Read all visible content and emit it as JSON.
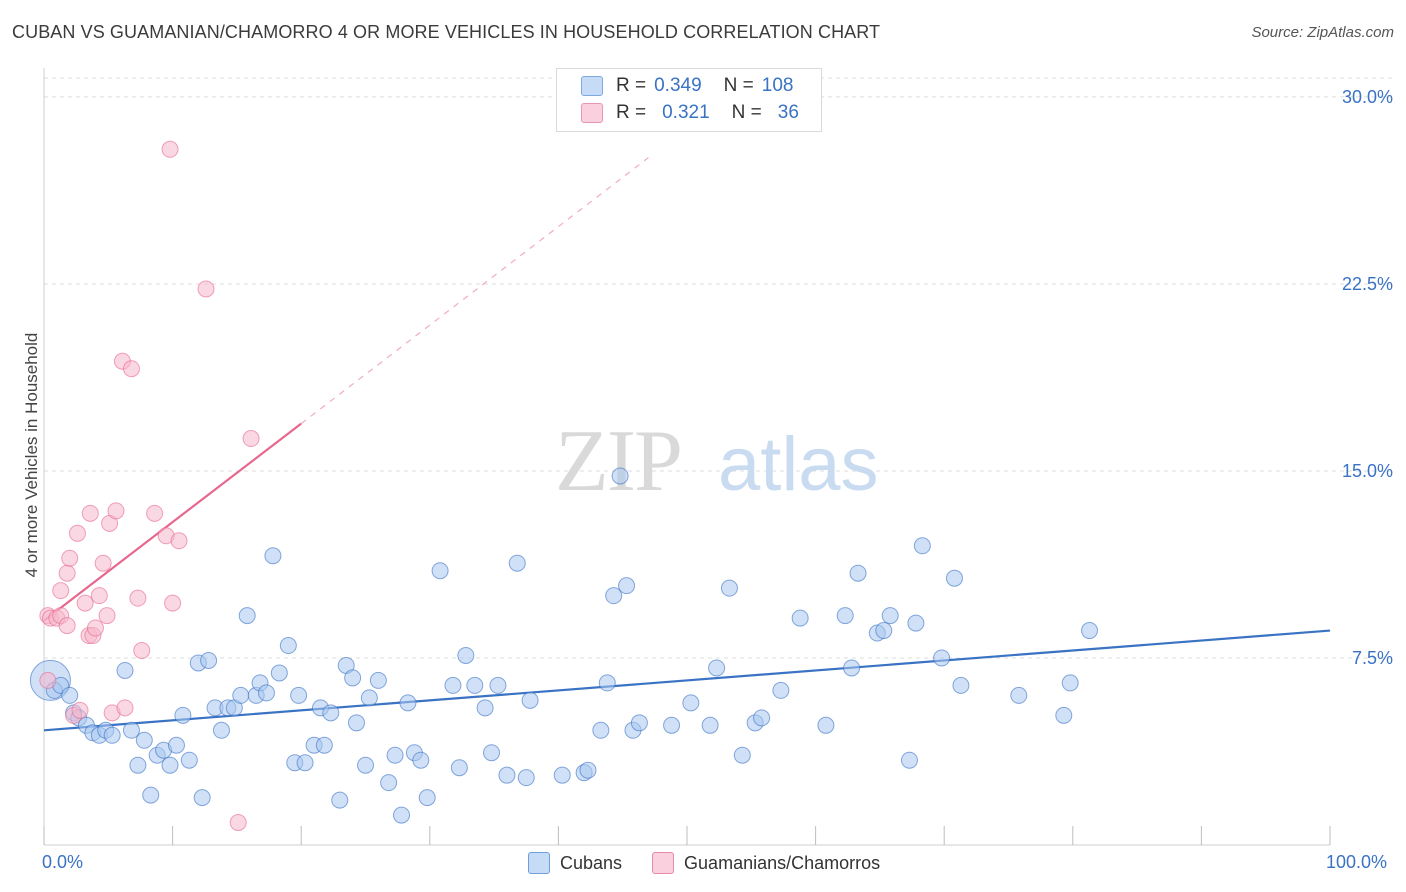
{
  "header": {
    "title": "CUBAN VS GUAMANIAN/CHAMORRO 4 OR MORE VEHICLES IN HOUSEHOLD CORRELATION CHART",
    "source": "Source: ZipAtlas.com"
  },
  "watermark": {
    "zip": "ZIP",
    "atlas": "atlas"
  },
  "stats_legend": [
    {
      "r_label": "R =",
      "r_value": "0.349",
      "n_label": "N =",
      "n_value": "108",
      "color": "#a9c8f0"
    },
    {
      "r_label": "R =",
      "r_value": "0.321",
      "n_label": "N =",
      "n_value": "36",
      "color": "#f6b8cc"
    }
  ],
  "chart_data": {
    "type": "scatter",
    "title": "CUBAN VS GUAMANIAN/CHAMORRO 4 OR MORE VEHICLES IN HOUSEHOLD CORRELATION CHART",
    "ylabel": "4 or more Vehicles in Household",
    "xlabel": "",
    "xlim": [
      0,
      100
    ],
    "ylim": [
      0,
      31
    ],
    "x_tick_labels": [
      "0.0%",
      "100.0%"
    ],
    "y_ticks": [
      7.5,
      15.0,
      22.5,
      30.0
    ],
    "y_tick_labels": [
      "7.5%",
      "15.0%",
      "22.5%",
      "30.0%"
    ],
    "grid": true,
    "legend_position": "bottom-center",
    "series": [
      {
        "name": "Cubans",
        "color": "#3a72c4",
        "fill": "#a9c8f0",
        "trend": {
          "x0": 0,
          "y0": 4.6,
          "x1": 100,
          "y1": 8.6,
          "dashed_to": 100
        },
        "points": [
          [
            0.5,
            6.6
          ],
          [
            0.8,
            6.2
          ],
          [
            1.3,
            6.4
          ],
          [
            2.0,
            6.0
          ],
          [
            2.3,
            5.3
          ],
          [
            2.7,
            5.1
          ],
          [
            3.3,
            4.8
          ],
          [
            3.8,
            4.5
          ],
          [
            4.3,
            4.4
          ],
          [
            4.8,
            4.6
          ],
          [
            5.3,
            4.4
          ],
          [
            6.3,
            7.0
          ],
          [
            6.8,
            4.6
          ],
          [
            7.3,
            3.2
          ],
          [
            7.8,
            4.2
          ],
          [
            8.3,
            2.0
          ],
          [
            8.8,
            3.6
          ],
          [
            9.3,
            3.8
          ],
          [
            9.8,
            3.2
          ],
          [
            10.3,
            4.0
          ],
          [
            10.8,
            5.2
          ],
          [
            11.3,
            3.4
          ],
          [
            12.0,
            7.3
          ],
          [
            12.3,
            1.9
          ],
          [
            12.8,
            7.4
          ],
          [
            13.3,
            5.5
          ],
          [
            13.8,
            4.6
          ],
          [
            14.3,
            5.5
          ],
          [
            14.8,
            5.5
          ],
          [
            15.3,
            6.0
          ],
          [
            15.8,
            9.2
          ],
          [
            16.5,
            6.0
          ],
          [
            16.8,
            6.5
          ],
          [
            17.3,
            6.1
          ],
          [
            17.8,
            11.6
          ],
          [
            18.3,
            6.9
          ],
          [
            19.0,
            8.0
          ],
          [
            19.5,
            3.3
          ],
          [
            19.8,
            6.0
          ],
          [
            20.3,
            3.3
          ],
          [
            21.0,
            4.0
          ],
          [
            21.5,
            5.5
          ],
          [
            21.8,
            4.0
          ],
          [
            22.3,
            5.3
          ],
          [
            23.0,
            1.8
          ],
          [
            23.5,
            7.2
          ],
          [
            24.0,
            6.7
          ],
          [
            24.3,
            4.9
          ],
          [
            25.0,
            3.2
          ],
          [
            25.3,
            5.9
          ],
          [
            26.0,
            6.6
          ],
          [
            26.8,
            2.5
          ],
          [
            27.3,
            3.6
          ],
          [
            27.8,
            1.2
          ],
          [
            28.3,
            5.7
          ],
          [
            28.8,
            3.7
          ],
          [
            29.3,
            3.4
          ],
          [
            29.8,
            1.9
          ],
          [
            30.8,
            11.0
          ],
          [
            31.8,
            6.4
          ],
          [
            32.3,
            3.1
          ],
          [
            32.8,
            7.6
          ],
          [
            33.5,
            6.4
          ],
          [
            34.3,
            5.5
          ],
          [
            34.8,
            3.7
          ],
          [
            35.3,
            6.4
          ],
          [
            36.0,
            2.8
          ],
          [
            36.8,
            11.3
          ],
          [
            37.5,
            2.7
          ],
          [
            37.8,
            5.8
          ],
          [
            40.3,
            2.8
          ],
          [
            42.0,
            2.9
          ],
          [
            42.3,
            3.0
          ],
          [
            43.3,
            4.6
          ],
          [
            43.8,
            6.5
          ],
          [
            44.3,
            10.0
          ],
          [
            44.8,
            14.8
          ],
          [
            45.3,
            10.4
          ],
          [
            45.8,
            4.6
          ],
          [
            46.3,
            4.9
          ],
          [
            48.8,
            4.8
          ],
          [
            50.3,
            5.7
          ],
          [
            51.8,
            4.8
          ],
          [
            52.3,
            7.1
          ],
          [
            53.3,
            10.3
          ],
          [
            54.3,
            3.6
          ],
          [
            55.3,
            4.9
          ],
          [
            55.8,
            5.1
          ],
          [
            57.3,
            6.2
          ],
          [
            58.8,
            9.1
          ],
          [
            60.8,
            4.8
          ],
          [
            62.3,
            9.2
          ],
          [
            62.8,
            7.1
          ],
          [
            63.3,
            10.9
          ],
          [
            64.8,
            8.5
          ],
          [
            65.3,
            8.6
          ],
          [
            65.8,
            9.2
          ],
          [
            67.3,
            3.4
          ],
          [
            67.8,
            8.9
          ],
          [
            68.3,
            12.0
          ],
          [
            69.8,
            7.5
          ],
          [
            70.8,
            10.7
          ],
          [
            71.3,
            6.4
          ],
          [
            75.8,
            6.0
          ],
          [
            79.3,
            5.2
          ],
          [
            79.8,
            6.5
          ],
          [
            81.3,
            8.6
          ]
        ]
      },
      {
        "name": "Guamanians/Chamorros",
        "color": "#e8678d",
        "fill": "#f6b8cc",
        "trend": {
          "x0": 0,
          "y0": 9.0,
          "x1": 20,
          "y1": 16.9,
          "dashed_to": 47
        },
        "points": [
          [
            0.3,
            6.6
          ],
          [
            0.3,
            9.2
          ],
          [
            0.5,
            9.1
          ],
          [
            1.0,
            9.1
          ],
          [
            1.3,
            9.2
          ],
          [
            1.3,
            10.2
          ],
          [
            1.8,
            8.8
          ],
          [
            1.8,
            10.9
          ],
          [
            2.0,
            11.5
          ],
          [
            2.3,
            5.2
          ],
          [
            2.6,
            12.5
          ],
          [
            2.8,
            5.4
          ],
          [
            3.2,
            9.7
          ],
          [
            3.5,
            8.4
          ],
          [
            3.6,
            13.3
          ],
          [
            3.8,
            8.4
          ],
          [
            4.0,
            8.7
          ],
          [
            4.3,
            10.0
          ],
          [
            4.6,
            11.3
          ],
          [
            4.9,
            9.2
          ],
          [
            5.1,
            12.9
          ],
          [
            5.3,
            5.3
          ],
          [
            5.6,
            13.4
          ],
          [
            6.1,
            19.4
          ],
          [
            6.3,
            5.5
          ],
          [
            6.8,
            19.1
          ],
          [
            7.3,
            9.9
          ],
          [
            7.6,
            7.8
          ],
          [
            8.6,
            13.3
          ],
          [
            9.5,
            12.4
          ],
          [
            9.8,
            27.9
          ],
          [
            10.0,
            9.7
          ],
          [
            10.5,
            12.2
          ],
          [
            12.6,
            22.3
          ],
          [
            15.1,
            0.9
          ],
          [
            16.1,
            16.3
          ]
        ]
      }
    ]
  },
  "bottom_legend": [
    {
      "label": "Cubans",
      "color": "#a9c8f0",
      "border": "#6f9fdc"
    },
    {
      "label": "Guamanians/Chamorros",
      "color": "#f6b8cc",
      "border": "#e58aa7"
    }
  ]
}
